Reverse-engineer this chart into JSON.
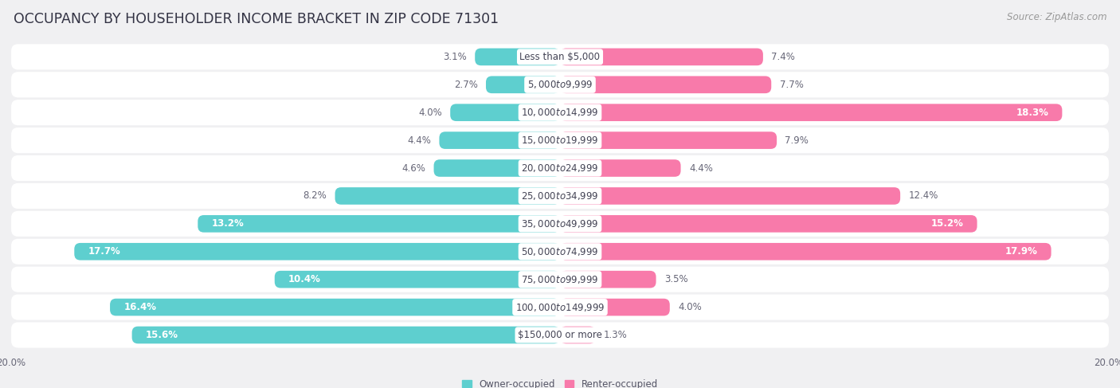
{
  "title": "OCCUPANCY BY HOUSEHOLDER INCOME BRACKET IN ZIP CODE 71301",
  "source": "Source: ZipAtlas.com",
  "categories": [
    "Less than $5,000",
    "$5,000 to $9,999",
    "$10,000 to $14,999",
    "$15,000 to $19,999",
    "$20,000 to $24,999",
    "$25,000 to $34,999",
    "$35,000 to $49,999",
    "$50,000 to $74,999",
    "$75,000 to $99,999",
    "$100,000 to $149,999",
    "$150,000 or more"
  ],
  "owner_values": [
    3.1,
    2.7,
    4.0,
    4.4,
    4.6,
    8.2,
    13.2,
    17.7,
    10.4,
    16.4,
    15.6
  ],
  "renter_values": [
    7.4,
    7.7,
    18.3,
    7.9,
    4.4,
    12.4,
    15.2,
    17.9,
    3.5,
    4.0,
    1.3
  ],
  "owner_color": "#5ecfcf",
  "renter_color": "#f87aaa",
  "background_color": "#f0f0f2",
  "row_bg_color": "#f8f8fa",
  "bar_bg_color": "#ffffff",
  "xlim": 20.0,
  "legend_owner": "Owner-occupied",
  "legend_renter": "Renter-occupied",
  "title_fontsize": 12.5,
  "source_fontsize": 8.5,
  "label_fontsize": 8.5,
  "category_fontsize": 8.5,
  "bar_height": 0.62
}
